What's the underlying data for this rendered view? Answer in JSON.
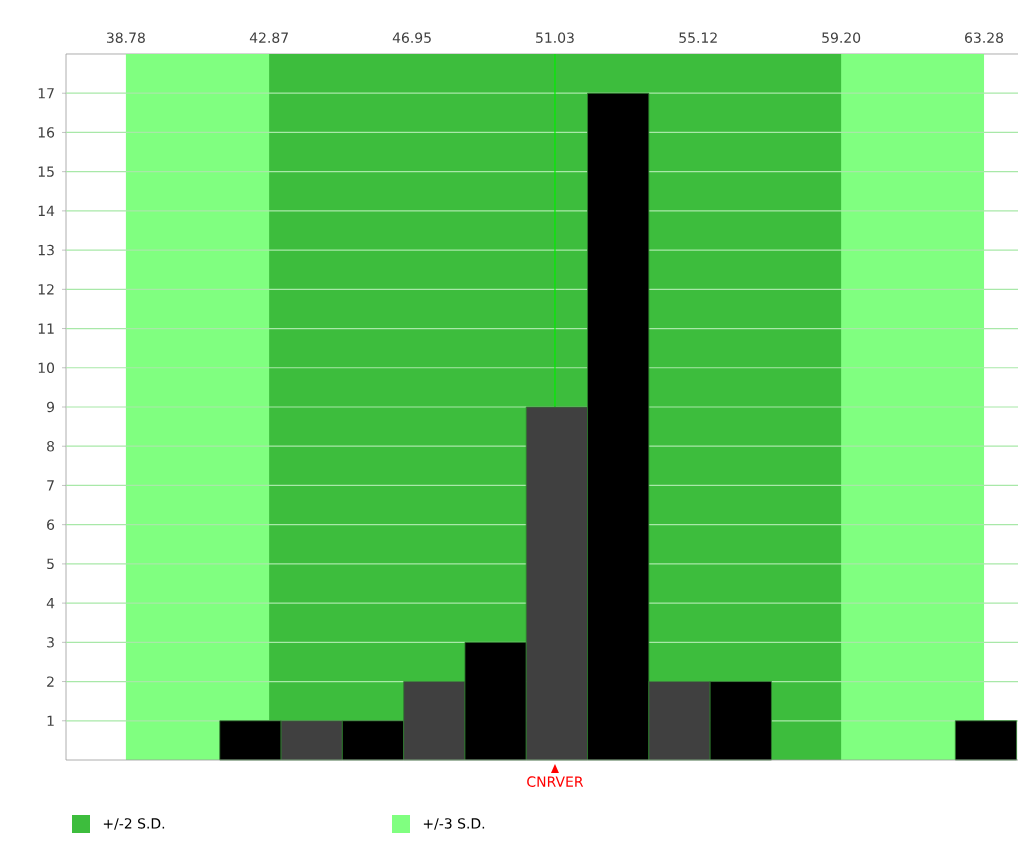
{
  "chart_data": {
    "type": "histogram",
    "bins": [
      41.46,
      43.21,
      44.96,
      46.71,
      48.46,
      50.21,
      51.96,
      53.71,
      55.46,
      57.21,
      58.96,
      60.71,
      62.46,
      64.21
    ],
    "values": [
      1,
      1,
      1,
      2,
      3,
      9,
      17,
      2,
      2,
      0,
      0,
      0,
      1
    ],
    "colors": [
      "#000000",
      "#404040",
      "#000000",
      "#404040",
      "#000000",
      "#404040",
      "#000000",
      "#404040",
      "#000000",
      "#404040",
      "#000000",
      "#404040",
      "#000000"
    ],
    "xlim": [
      37.07,
      64.25
    ],
    "xticks": [
      38.78,
      42.87,
      46.95,
      51.03,
      55.12,
      {
        "value": 59.2,
        "label": "59.20"
      },
      63.28
    ],
    "ylim": [
      0,
      18
    ],
    "yticks": [
      1,
      2,
      3,
      4,
      5,
      6,
      7,
      8,
      9,
      10,
      11,
      12,
      13,
      14,
      15,
      16,
      17
    ],
    "grid": "y",
    "bands": [
      {
        "axis": "x",
        "from": 38.78,
        "to": 63.28,
        "label": "+/-3 S.D.",
        "color": "#80ff80"
      },
      {
        "axis": "x",
        "from": 42.87,
        "to": 59.2,
        "label": "+/-2 S.D.",
        "color": "#3dbd3d"
      }
    ],
    "ref_lines": [
      {
        "axis": "x",
        "value": 51.03,
        "label": "CNRVER",
        "color": "#00ee00"
      }
    ],
    "legend": "bottom"
  }
}
